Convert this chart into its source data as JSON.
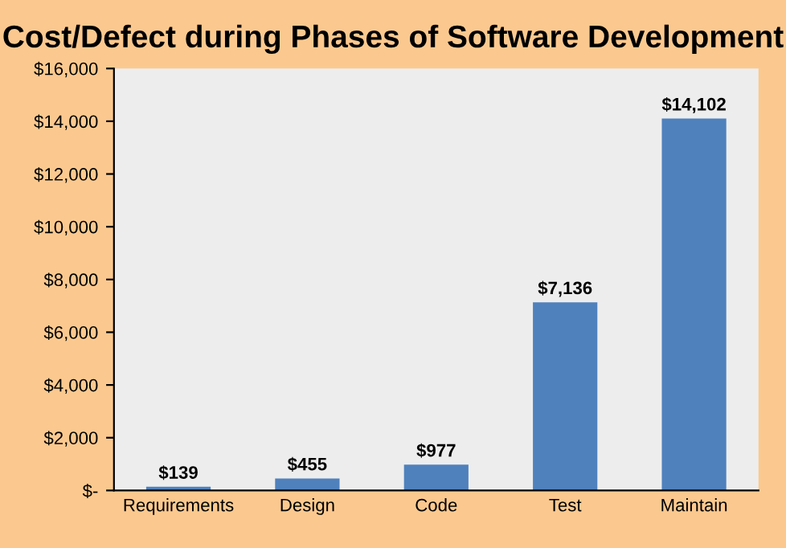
{
  "chart_data": {
    "type": "bar",
    "title": "Cost/Defect during Phases of Software Development",
    "categories": [
      "Requirements",
      "Design",
      "Code",
      "Test",
      "Maintain"
    ],
    "values": [
      139,
      455,
      977,
      7136,
      14102
    ],
    "value_labels": [
      "$139",
      "$455",
      "$977",
      "$7,136",
      "$14,102"
    ],
    "color": "#4f81bd",
    "ylim": [
      0,
      16000
    ],
    "yticks": [
      {
        "value": 0,
        "label": "$-"
      },
      {
        "value": 2000,
        "label": "$2,000"
      },
      {
        "value": 4000,
        "label": "$4,000"
      },
      {
        "value": 6000,
        "label": "$6,000"
      },
      {
        "value": 8000,
        "label": "$8,000"
      },
      {
        "value": 10000,
        "label": "$10,000"
      },
      {
        "value": 12000,
        "label": "$12,000"
      },
      {
        "value": 14000,
        "label": "$14,000"
      },
      {
        "value": 16000,
        "label": "$16,000"
      }
    ],
    "grid": false,
    "legend": false
  }
}
